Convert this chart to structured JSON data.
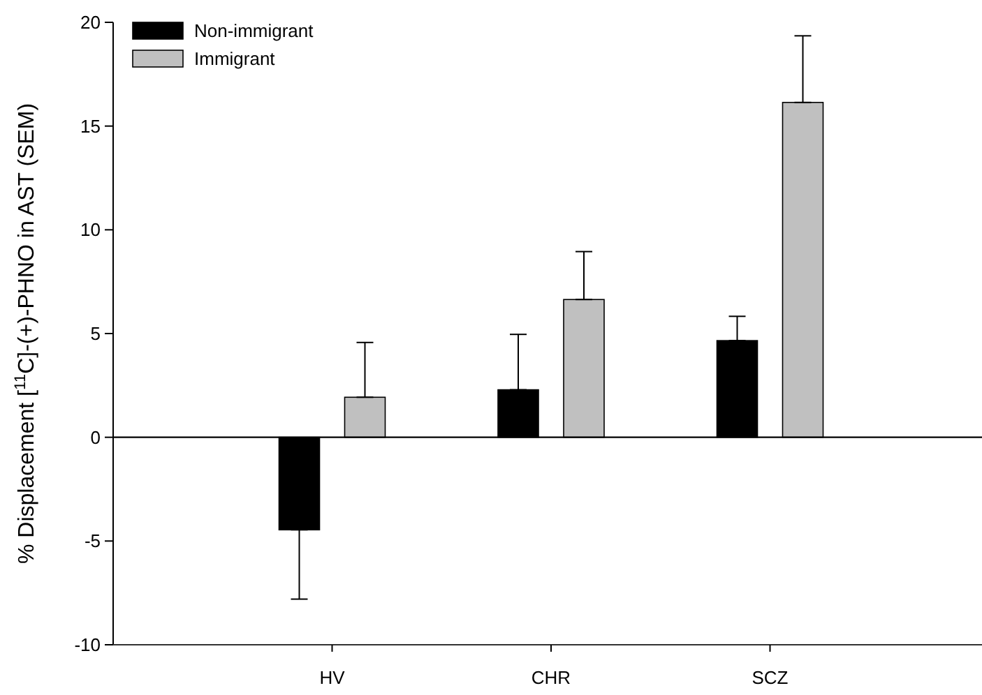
{
  "chart_data": {
    "type": "bar",
    "ylabel": "% Displacement [$^{11}$C]-(+)-PHNO in AST (SEM)",
    "categories": [
      "HV",
      "CHR",
      "SCZ"
    ],
    "series": [
      {
        "name": "Non-immigrant",
        "color": "#000000",
        "values": [
          -4.46,
          2.29,
          4.66
        ],
        "errors": [
          [
            -7.8,
            -4.46
          ],
          [
            2.29,
            4.96
          ],
          [
            4.66,
            5.83
          ]
        ]
      },
      {
        "name": "Immigrant",
        "color": "#c0c0c0",
        "values": [
          1.93,
          6.64,
          16.14
        ],
        "errors": [
          [
            1.93,
            4.57
          ],
          [
            6.64,
            8.95
          ],
          [
            16.14,
            19.35
          ]
        ]
      }
    ],
    "ylim": [
      -10,
      20
    ],
    "yticks": [
      -10,
      -5,
      0,
      5,
      10,
      15,
      20
    ],
    "legend": "top left"
  }
}
